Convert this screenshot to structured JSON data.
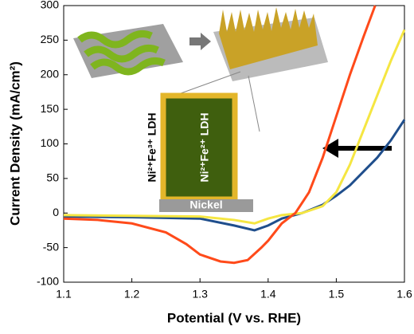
{
  "chart_data": {
    "type": "line",
    "x_label": "Potential (V vs. RHE)",
    "y_label": "Current Density (mA/cm²)",
    "xlim": [
      1.1,
      1.6
    ],
    "xticks": [
      1.1,
      1.2,
      1.3,
      1.4,
      1.5,
      1.6
    ],
    "ylim": [
      -100,
      300
    ],
    "yticks": [
      -100,
      -50,
      0,
      50,
      100,
      150,
      200,
      250,
      300
    ],
    "annotations": [
      "Nickel",
      "Ni²⁺Fe³⁺ LDH",
      "Ni²⁺Fe²⁺ LDH"
    ],
    "series": [
      {
        "color": "#1f4e8c",
        "x": [
          1.1,
          1.2,
          1.3,
          1.35,
          1.38,
          1.4,
          1.42,
          1.45,
          1.48,
          1.5,
          1.52,
          1.54,
          1.56,
          1.58,
          1.6
        ],
        "values": [
          -5,
          -6,
          -8,
          -18,
          -25,
          -18,
          -8,
          0,
          12,
          25,
          40,
          60,
          80,
          105,
          135
        ]
      },
      {
        "color": "#f5e642",
        "x": [
          1.1,
          1.2,
          1.3,
          1.35,
          1.38,
          1.4,
          1.42,
          1.45,
          1.48,
          1.5,
          1.52,
          1.54,
          1.56,
          1.58,
          1.6
        ],
        "values": [
          -3,
          -4,
          -5,
          -10,
          -15,
          -8,
          -3,
          0,
          10,
          30,
          70,
          120,
          170,
          220,
          265
        ]
      },
      {
        "color": "#ff4a1a",
        "x": [
          1.1,
          1.15,
          1.2,
          1.25,
          1.28,
          1.3,
          1.33,
          1.35,
          1.37,
          1.39,
          1.4,
          1.42,
          1.44,
          1.46,
          1.48,
          1.5,
          1.52,
          1.54,
          1.557
        ],
        "values": [
          -8,
          -10,
          -15,
          -28,
          -45,
          -60,
          -70,
          -72,
          -68,
          -50,
          -40,
          -15,
          0,
          30,
          80,
          140,
          200,
          255,
          300
        ]
      }
    ]
  }
}
